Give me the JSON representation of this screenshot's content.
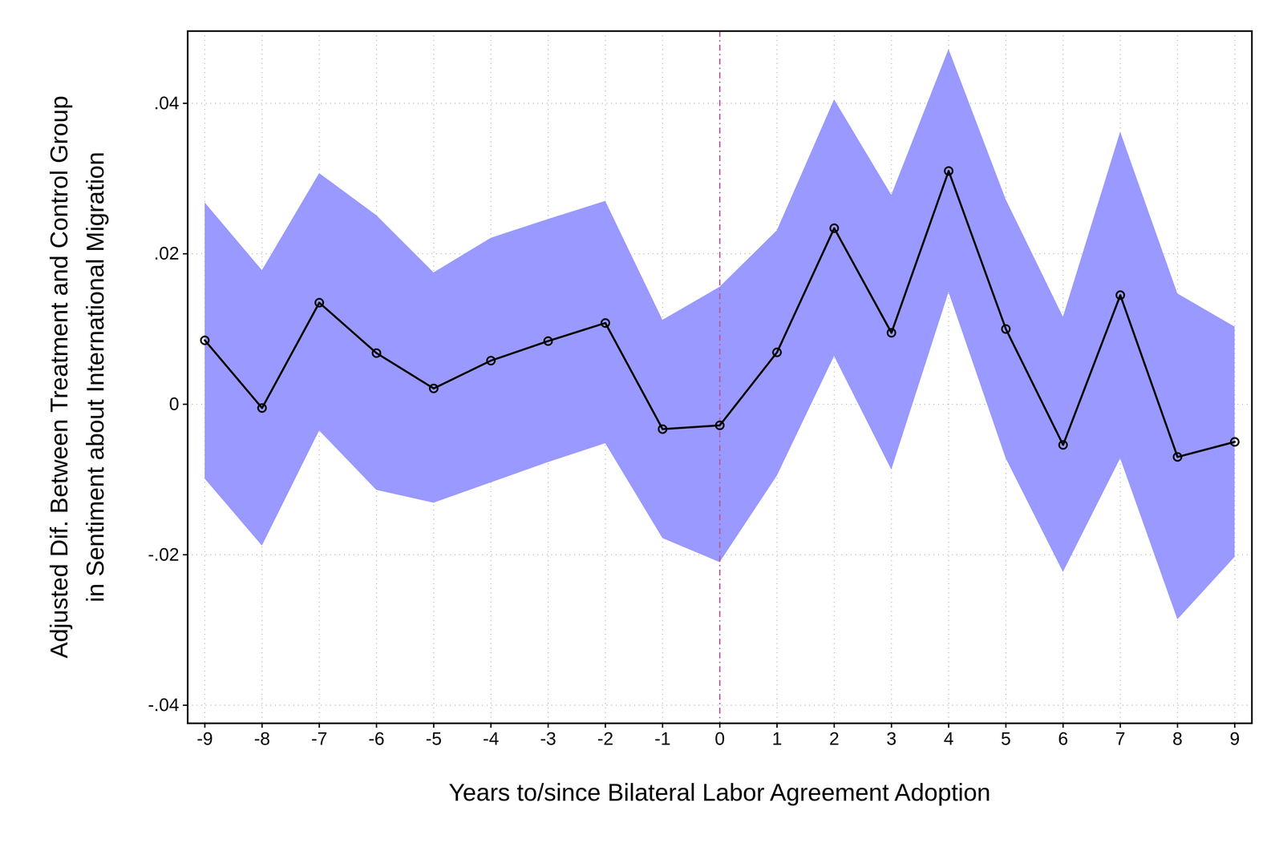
{
  "chart_data": {
    "type": "line",
    "xlabel": "Years to/since Bilateral Labor Agreement Adoption",
    "ylabel": [
      "Adjusted Dif. Between Treatment and Control Group",
      "in Sentiment about International Migration"
    ],
    "x": [
      -9,
      -8,
      -7,
      -6,
      -5,
      -4,
      -3,
      -2,
      -1,
      0,
      1,
      2,
      3,
      4,
      5,
      6,
      7,
      8,
      9
    ],
    "values": [
      0.0085,
      -0.0005,
      0.0135,
      0.0068,
      0.0021,
      0.0058,
      0.0084,
      0.0108,
      -0.0033,
      -0.0028,
      0.0069,
      0.0234,
      0.0095,
      0.031,
      0.01,
      -0.0054,
      0.0145,
      -0.007,
      -0.005
    ],
    "ci_lower": [
      -0.0099,
      -0.0188,
      -0.0035,
      -0.0114,
      -0.0131,
      -0.0104,
      -0.0077,
      -0.0052,
      -0.0178,
      -0.021,
      -0.0095,
      0.0064,
      -0.0087,
      0.0149,
      -0.0072,
      -0.0223,
      -0.0072,
      -0.0286,
      -0.0203
    ],
    "ci_upper": [
      0.0268,
      0.0178,
      0.0307,
      0.0251,
      0.0175,
      0.0221,
      0.0246,
      0.027,
      0.0112,
      0.0156,
      0.0231,
      0.0405,
      0.0278,
      0.0472,
      0.0272,
      0.0116,
      0.0362,
      0.0147,
      0.0103
    ],
    "reference_line_x": 0,
    "color": "#000000",
    "marker": "circle",
    "line_style": "solid",
    "xlim": [
      -9.3,
      9.3
    ],
    "ylim": [
      -0.0424,
      0.0496
    ],
    "xticks": [
      -9,
      -8,
      -7,
      -6,
      -5,
      -4,
      -3,
      -2,
      -1,
      0,
      1,
      2,
      3,
      4,
      5,
      6,
      7,
      8,
      9
    ],
    "yticks": [
      {
        "value": -0.04,
        "label": "-.04"
      },
      {
        "value": -0.02,
        "label": "-.02"
      },
      0,
      {
        "value": 0.02,
        "label": ".02"
      },
      {
        "value": 0.04,
        "label": ".04"
      }
    ],
    "grid": true
  }
}
